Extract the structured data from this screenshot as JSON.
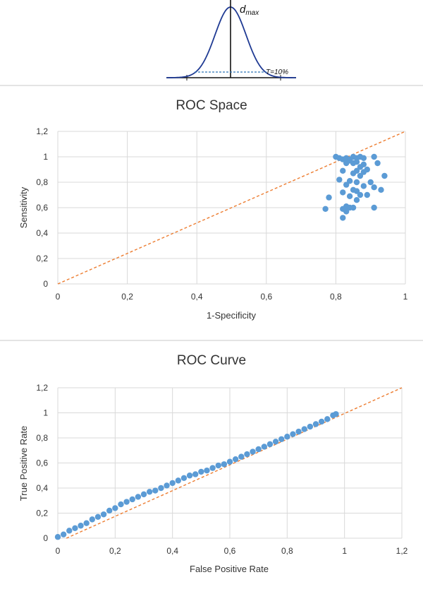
{
  "diagram": {
    "peak_label": "d",
    "peak_label_sub": "max",
    "threshold_label": "T=10%"
  },
  "chart_data": [
    {
      "type": "scatter",
      "title": "ROC Space",
      "xlabel": "1-Specificity",
      "ylabel": "Sensitivity",
      "xlim": [
        0,
        1
      ],
      "ylim": [
        0,
        1.2
      ],
      "xticks": [
        "0",
        "0,2",
        "0,4",
        "0,6",
        "0,8",
        "1"
      ],
      "yticks": [
        "0",
        "0,2",
        "0,4",
        "0,6",
        "0,8",
        "1",
        "1,2"
      ],
      "grid": true,
      "reference_line": {
        "x": [
          0,
          1
        ],
        "y": [
          0,
          1.2
        ],
        "style": "dashed",
        "color": "#ed7d31"
      },
      "marker_color": "#5b9bd5",
      "points": [
        [
          0.8,
          1.0
        ],
        [
          0.81,
          0.99
        ],
        [
          0.82,
          0.98
        ],
        [
          0.83,
          0.99
        ],
        [
          0.84,
          0.98
        ],
        [
          0.85,
          1.0
        ],
        [
          0.86,
          0.99
        ],
        [
          0.87,
          1.0
        ],
        [
          0.88,
          0.99
        ],
        [
          0.91,
          1.0
        ],
        [
          0.84,
          0.97
        ],
        [
          0.86,
          0.96
        ],
        [
          0.83,
          0.95
        ],
        [
          0.85,
          0.95
        ],
        [
          0.88,
          0.94
        ],
        [
          0.92,
          0.95
        ],
        [
          0.87,
          0.92
        ],
        [
          0.89,
          0.9
        ],
        [
          0.86,
          0.89
        ],
        [
          0.82,
          0.89
        ],
        [
          0.88,
          0.88
        ],
        [
          0.85,
          0.87
        ],
        [
          0.94,
          0.85
        ],
        [
          0.87,
          0.85
        ],
        [
          0.81,
          0.82
        ],
        [
          0.84,
          0.81
        ],
        [
          0.86,
          0.8
        ],
        [
          0.9,
          0.8
        ],
        [
          0.83,
          0.78
        ],
        [
          0.88,
          0.77
        ],
        [
          0.91,
          0.76
        ],
        [
          0.85,
          0.74
        ],
        [
          0.86,
          0.73
        ],
        [
          0.93,
          0.74
        ],
        [
          0.82,
          0.72
        ],
        [
          0.87,
          0.7
        ],
        [
          0.84,
          0.69
        ],
        [
          0.78,
          0.68
        ],
        [
          0.89,
          0.7
        ],
        [
          0.86,
          0.66
        ],
        [
          0.77,
          0.59
        ],
        [
          0.83,
          0.61
        ],
        [
          0.84,
          0.6
        ],
        [
          0.82,
          0.59
        ],
        [
          0.85,
          0.6
        ],
        [
          0.83,
          0.57
        ],
        [
          0.91,
          0.6
        ],
        [
          0.82,
          0.52
        ]
      ]
    },
    {
      "type": "scatter",
      "title": "ROC Curve",
      "xlabel": "False Positive Rate",
      "ylabel": "True Positive Rate",
      "xlim": [
        0,
        1.2
      ],
      "ylim": [
        0,
        1.2
      ],
      "xticks": [
        "0",
        "0,2",
        "0,4",
        "0,6",
        "0,8",
        "1",
        "1,2"
      ],
      "yticks": [
        "0",
        "0,2",
        "0,4",
        "0,6",
        "0,8",
        "1",
        "1,2"
      ],
      "grid": true,
      "reference_line": {
        "x": [
          0.03,
          1.2
        ],
        "y": [
          0,
          1.2
        ],
        "style": "dashed",
        "color": "#ed7d31"
      },
      "marker_color": "#5b9bd5",
      "points": [
        [
          0.0,
          0.01
        ],
        [
          0.02,
          0.03
        ],
        [
          0.04,
          0.06
        ],
        [
          0.06,
          0.08
        ],
        [
          0.08,
          0.1
        ],
        [
          0.1,
          0.12
        ],
        [
          0.12,
          0.15
        ],
        [
          0.14,
          0.17
        ],
        [
          0.16,
          0.19
        ],
        [
          0.18,
          0.22
        ],
        [
          0.2,
          0.24
        ],
        [
          0.22,
          0.27
        ],
        [
          0.24,
          0.29
        ],
        [
          0.26,
          0.31
        ],
        [
          0.28,
          0.33
        ],
        [
          0.3,
          0.35
        ],
        [
          0.32,
          0.37
        ],
        [
          0.34,
          0.38
        ],
        [
          0.36,
          0.4
        ],
        [
          0.38,
          0.42
        ],
        [
          0.4,
          0.44
        ],
        [
          0.42,
          0.46
        ],
        [
          0.44,
          0.48
        ],
        [
          0.46,
          0.5
        ],
        [
          0.48,
          0.51
        ],
        [
          0.5,
          0.53
        ],
        [
          0.52,
          0.54
        ],
        [
          0.54,
          0.56
        ],
        [
          0.56,
          0.58
        ],
        [
          0.58,
          0.59
        ],
        [
          0.6,
          0.61
        ],
        [
          0.62,
          0.63
        ],
        [
          0.64,
          0.65
        ],
        [
          0.66,
          0.67
        ],
        [
          0.68,
          0.69
        ],
        [
          0.7,
          0.71
        ],
        [
          0.72,
          0.73
        ],
        [
          0.74,
          0.75
        ],
        [
          0.76,
          0.77
        ],
        [
          0.78,
          0.79
        ],
        [
          0.8,
          0.81
        ],
        [
          0.82,
          0.83
        ],
        [
          0.84,
          0.85
        ],
        [
          0.86,
          0.87
        ],
        [
          0.88,
          0.89
        ],
        [
          0.9,
          0.91
        ],
        [
          0.92,
          0.93
        ],
        [
          0.94,
          0.95
        ],
        [
          0.96,
          0.98
        ],
        [
          0.97,
          0.99
        ]
      ]
    }
  ]
}
